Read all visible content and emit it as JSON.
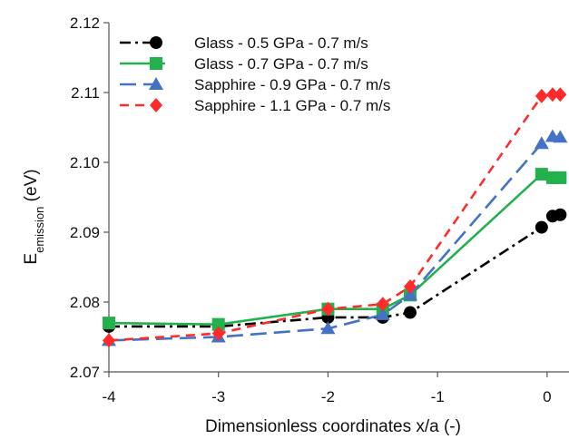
{
  "chart_data": {
    "type": "line",
    "title": "",
    "xlabel": "Dimensionless coordinates x/a (-)",
    "ylabel_main": "E",
    "ylabel_sub": "emission",
    "ylabel_unit": " (eV)",
    "xlim": [
      -4,
      0.2
    ],
    "ylim": [
      2.07,
      2.12
    ],
    "xticks": [
      -4,
      -3,
      -2,
      -1,
      0
    ],
    "xtick_labels": [
      "-4",
      "-3",
      "-2",
      "-1",
      "0"
    ],
    "yticks": [
      2.07,
      2.08,
      2.09,
      2.1,
      2.11,
      2.12
    ],
    "ytick_labels": [
      "2.07",
      "2.08",
      "2.09",
      "2.10",
      "2.11",
      "2.12"
    ],
    "grid": false,
    "legend_position": "top-left",
    "series": [
      {
        "name": "Glass - 0.5 GPa - 0.7 m/s",
        "color": "#000000",
        "dash": "dash-dot",
        "marker": "circle",
        "x": [
          -4,
          -3,
          -2,
          -1.5,
          -1.25,
          -0.05,
          0.05,
          0.12
        ],
        "y": [
          2.0765,
          2.0765,
          2.0778,
          2.0778,
          2.0785,
          2.0907,
          2.0923,
          2.0925
        ]
      },
      {
        "name": "Glass - 0.7 GPa - 0.7 m/s",
        "color": "#22b14c",
        "dash": "solid",
        "marker": "square",
        "x": [
          -4,
          -3,
          -2,
          -1.5,
          -1.25,
          -0.05,
          0.05,
          0.12
        ],
        "y": [
          2.077,
          2.0768,
          2.079,
          2.079,
          2.081,
          2.0983,
          2.0978,
          2.0978
        ]
      },
      {
        "name": "Sapphire - 0.9 GPa - 0.7 m/s",
        "color": "#4472c4",
        "dash": "long-dash",
        "marker": "triangle",
        "x": [
          -4,
          -3,
          -2,
          -1.5,
          -1.25,
          -0.05,
          0.05,
          0.12
        ],
        "y": [
          2.0745,
          2.075,
          2.0762,
          2.0782,
          2.081,
          2.1027,
          2.1037,
          2.1036
        ]
      },
      {
        "name": "Sapphire - 1.1 GPa - 0.7 m/s",
        "color": "#ff2a2a",
        "dash": "dash",
        "marker": "diamond",
        "x": [
          -4,
          -3,
          -2,
          -1.5,
          -1.25,
          -0.05,
          0.05,
          0.12
        ],
        "y": [
          2.0745,
          2.0755,
          2.079,
          2.0797,
          2.0822,
          2.1095,
          2.1097,
          2.1097
        ]
      }
    ]
  }
}
